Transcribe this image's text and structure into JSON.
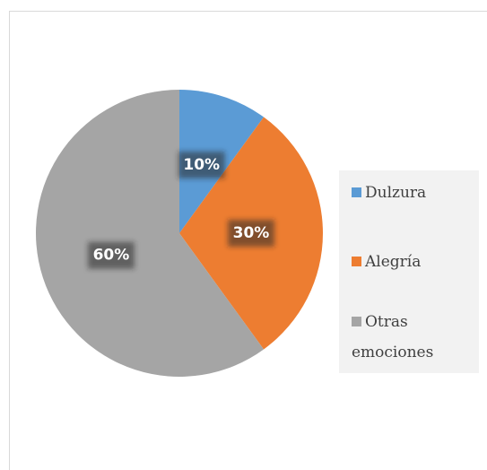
{
  "chart_data": {
    "type": "pie",
    "categories": [
      "Dulzura",
      "Alegría",
      "Otras emociones"
    ],
    "values": [
      10,
      30,
      60
    ],
    "value_labels": [
      "10%",
      "30%",
      "60%"
    ],
    "colors": [
      "#5b9bd5",
      "#ed7d31",
      "#a5a5a5"
    ],
    "legend": "right"
  }
}
